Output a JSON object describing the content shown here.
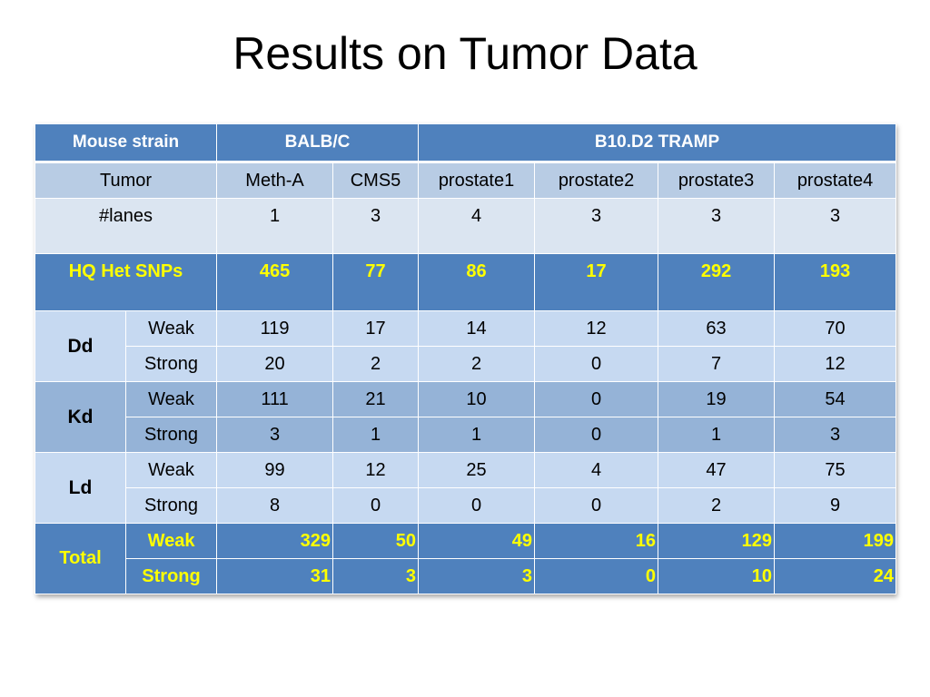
{
  "slide": {
    "title": "Results on Tumor Data"
  },
  "table": {
    "header": {
      "label": "Mouse strain",
      "strain1": "BALB/C",
      "strain2": "B10.D2 TRAMP"
    },
    "tumor_row": {
      "label": "Tumor",
      "values": [
        "Meth-A",
        "CMS5",
        "prostate1",
        "prostate2",
        "prostate3",
        "prostate4"
      ]
    },
    "lanes_row": {
      "label": "#lanes",
      "values": [
        "1",
        "3",
        "4",
        "3",
        "3",
        "3"
      ]
    },
    "snp_row": {
      "label": "HQ Het SNPs",
      "values": [
        "465",
        "77",
        "86",
        "17",
        "292",
        "193"
      ]
    },
    "groups": [
      {
        "name": "Dd",
        "rows": [
          {
            "label": "Weak",
            "values": [
              "119",
              "17",
              "14",
              "12",
              "63",
              "70"
            ]
          },
          {
            "label": "Strong",
            "values": [
              "20",
              "2",
              "2",
              "0",
              "7",
              "12"
            ]
          }
        ]
      },
      {
        "name": "Kd",
        "rows": [
          {
            "label": "Weak",
            "values": [
              "111",
              "21",
              "10",
              "0",
              "19",
              "54"
            ]
          },
          {
            "label": "Strong",
            "values": [
              "3",
              "1",
              "1",
              "0",
              "1",
              "3"
            ]
          }
        ]
      },
      {
        "name": "Ld",
        "rows": [
          {
            "label": "Weak",
            "values": [
              "99",
              "12",
              "25",
              "4",
              "47",
              "75"
            ]
          },
          {
            "label": "Strong",
            "values": [
              "8",
              "0",
              "0",
              "0",
              "2",
              "9"
            ]
          }
        ]
      }
    ],
    "total": {
      "name": "Total",
      "rows": [
        {
          "label": "Weak",
          "values": [
            "329",
            "50",
            "49",
            "16",
            "129",
            "199"
          ]
        },
        {
          "label": "Strong",
          "values": [
            "31",
            "3",
            "3",
            "0",
            "10",
            "24"
          ]
        }
      ]
    }
  },
  "colors": {
    "header_blue": "#4f81bd",
    "highlight_yellow": "#ffff00",
    "light_band": "#c6d9f1",
    "mid_band": "#95b3d7"
  }
}
